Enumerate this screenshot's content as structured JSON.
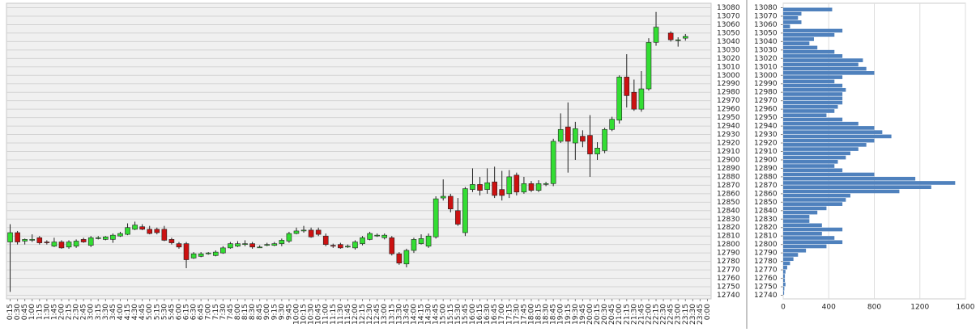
{
  "chart_data": [
    {
      "type": "candlestick",
      "x": [
        "0:15",
        "0:30",
        "0:45",
        "1:00",
        "1:15",
        "1:30",
        "1:45",
        "2:00",
        "2:15",
        "2:30",
        "2:45",
        "3:00",
        "3:15",
        "3:30",
        "3:45",
        "4:00",
        "4:15",
        "4:30",
        "4:45",
        "5:00",
        "5:15",
        "5:30",
        "5:45",
        "6:00",
        "6:15",
        "6:30",
        "6:45",
        "7:00",
        "7:15",
        "7:30",
        "7:45",
        "8:00",
        "8:15",
        "8:30",
        "8:45",
        "9:00",
        "9:15",
        "9:30",
        "9:45",
        "10:00",
        "10:15",
        "10:30",
        "10:45",
        "11:00",
        "11:15",
        "11:30",
        "11:45",
        "12:00",
        "12:15",
        "12:30",
        "12:45",
        "13:00",
        "13:15",
        "13:30",
        "13:45",
        "14:00",
        "14:15",
        "14:30",
        "14:45",
        "15:00",
        "15:15",
        "15:30",
        "15:45",
        "16:00",
        "16:15",
        "16:30",
        "16:45",
        "17:00",
        "17:15",
        "17:30",
        "17:45",
        "18:00",
        "18:15",
        "18:30",
        "18:45",
        "19:00",
        "19:15",
        "19:30",
        "19:45",
        "20:00",
        "20:15",
        "20:30",
        "20:45",
        "21:00",
        "21:15",
        "21:30",
        "21:45",
        "22:00",
        "22:15",
        "22:30",
        "22:45",
        "23:00",
        "23:15",
        "23:30",
        "23:45",
        "0:00"
      ],
      "open": [
        12803,
        12814,
        12804,
        12805,
        12808,
        12803,
        12798,
        12803,
        12797,
        12798,
        12806,
        12799,
        12807,
        12806,
        12806,
        12810,
        12812,
        12818,
        12821,
        12818,
        12818,
        12818,
        12806,
        12801,
        12801,
        12784,
        12786,
        12789,
        12787,
        12790,
        12796,
        12798,
        12800,
        12801,
        12797,
        12799,
        12799,
        12801,
        12804,
        12813,
        12816,
        12817,
        12817,
        12810,
        12799,
        12800,
        12797,
        12796,
        12801,
        12806,
        12811,
        12808,
        12808,
        12789,
        12777,
        12793,
        12801,
        12798,
        12809,
        12855,
        12857,
        12840,
        12814,
        12865,
        12871,
        12865,
        12874,
        12865,
        12860,
        12882,
        12862,
        12872,
        12864,
        12871,
        12872,
        12922,
        12939,
        12920,
        12928,
        12929,
        12907,
        12911,
        12936,
        12947,
        12998,
        12980,
        12960,
        12984,
        13039,
        null,
        13050,
        13042,
        13044,
        null,
        null,
        null
      ],
      "high": [
        12824,
        12816,
        12807,
        12812,
        12810,
        12805,
        12808,
        12805,
        12805,
        12806,
        12808,
        12810,
        12810,
        12810,
        12813,
        12815,
        12825,
        12827,
        12824,
        12822,
        12820,
        12822,
        12808,
        12803,
        12803,
        12791,
        12791,
        12791,
        12793,
        12798,
        12803,
        12804,
        12805,
        12803,
        12799,
        12802,
        12803,
        12807,
        12815,
        12820,
        12822,
        12820,
        12820,
        12813,
        12801,
        12802,
        12800,
        12805,
        12810,
        12815,
        12813,
        12813,
        12810,
        12791,
        12795,
        12808,
        12812,
        12813,
        12857,
        12877,
        12860,
        12855,
        12868,
        12890,
        12880,
        12890,
        12892,
        12887,
        12888,
        12885,
        12880,
        12875,
        12876,
        12874,
        12925,
        12955,
        12968,
        12945,
        12935,
        12953,
        12921,
        12938,
        12951,
        13000,
        13025,
        12995,
        13005,
        13044,
        13075,
        null,
        13052,
        13045,
        13049,
        null,
        null,
        null
      ],
      "low": [
        12744,
        12800,
        12800,
        12803,
        12800,
        12800,
        12797,
        12795,
        12795,
        12796,
        12802,
        12797,
        12806,
        12805,
        12802,
        12809,
        12811,
        12817,
        12817,
        12812,
        12812,
        12804,
        12800,
        12795,
        12772,
        12783,
        12785,
        12788,
        12786,
        12789,
        12795,
        12797,
        12798,
        12795,
        12796,
        12798,
        12798,
        12798,
        12802,
        12812,
        12814,
        12808,
        12810,
        12798,
        12796,
        12795,
        12796,
        12794,
        12799,
        12805,
        12809,
        12806,
        12787,
        12776,
        12773,
        12790,
        12800,
        12796,
        12807,
        12852,
        12838,
        12822,
        12810,
        12862,
        12858,
        12860,
        12855,
        12852,
        12855,
        12858,
        12860,
        12862,
        12862,
        12869,
        12869,
        12920,
        12885,
        12900,
        12915,
        12880,
        12900,
        12908,
        12934,
        12943,
        12962,
        12958,
        12957,
        12982,
        13035,
        null,
        13040,
        13034,
        13041,
        null,
        null,
        null
      ],
      "close": [
        12814,
        12803,
        12806,
        12806,
        12802,
        12802,
        12803,
        12796,
        12803,
        12804,
        12803,
        12808,
        12808,
        12809,
        12811,
        12813,
        12820,
        12823,
        12818,
        12813,
        12814,
        12805,
        12802,
        12797,
        12782,
        12789,
        12789,
        12790,
        12791,
        12796,
        12801,
        12801,
        12801,
        12797,
        12797,
        12800,
        12801,
        12805,
        12813,
        12816,
        12817,
        12809,
        12812,
        12800,
        12798,
        12796,
        12798,
        12803,
        12808,
        12813,
        12811,
        12811,
        12789,
        12778,
        12793,
        12806,
        12807,
        12810,
        12854,
        12857,
        12842,
        12824,
        12866,
        12871,
        12864,
        12873,
        12858,
        12858,
        12880,
        12862,
        12872,
        12864,
        12872,
        12872,
        12922,
        12936,
        12922,
        12937,
        12922,
        12907,
        12914,
        12936,
        12948,
        12998,
        12976,
        12960,
        12984,
        13039,
        13057,
        null,
        13042,
        13042,
        13046,
        null,
        null,
        null
      ],
      "up_color": "#33dd33",
      "down_color": "#cc1111",
      "ylim": [
        12740,
        13080
      ],
      "yticks": [
        12740,
        12750,
        12760,
        12770,
        12780,
        12790,
        12800,
        12810,
        12820,
        12830,
        12840,
        12850,
        12860,
        12870,
        12880,
        12890,
        12900,
        12910,
        12920,
        12930,
        12940,
        12950,
        12960,
        12970,
        12980,
        12990,
        13000,
        13010,
        13020,
        13030,
        13040,
        13050,
        13060,
        13070,
        13080
      ],
      "grid": true
    },
    {
      "type": "volume_profile",
      "y": [
        12740,
        12745,
        12750,
        12755,
        12760,
        12765,
        12770,
        12775,
        12780,
        12785,
        12790,
        12795,
        12800,
        12805,
        12810,
        12815,
        12820,
        12825,
        12830,
        12835,
        12840,
        12845,
        12850,
        12855,
        12860,
        12865,
        12870,
        12875,
        12880,
        12885,
        12890,
        12895,
        12900,
        12905,
        12910,
        12915,
        12920,
        12925,
        12930,
        12935,
        12940,
        12945,
        12950,
        12955,
        12960,
        12965,
        12970,
        12975,
        12980,
        12985,
        12990,
        12995,
        13000,
        13005,
        13010,
        13015,
        13020,
        13025,
        13030,
        13035,
        13040,
        13045,
        13050,
        13055,
        13060,
        13065,
        13070,
        13075
      ],
      "values": [
        8,
        10,
        20,
        15,
        15,
        20,
        35,
        60,
        90,
        130,
        200,
        380,
        520,
        450,
        340,
        520,
        340,
        230,
        230,
        300,
        380,
        520,
        550,
        590,
        1020,
        1300,
        1510,
        1160,
        800,
        520,
        450,
        480,
        550,
        590,
        660,
        730,
        800,
        950,
        870,
        800,
        660,
        520,
        380,
        450,
        480,
        520,
        520,
        520,
        550,
        520,
        450,
        520,
        800,
        730,
        660,
        700,
        520,
        450,
        300,
        230,
        270,
        450,
        520,
        60,
        160,
        130,
        160,
        430
      ],
      "color": "#4f81bd",
      "ylim": [
        12740,
        13080
      ],
      "yticks": [
        12740,
        12750,
        12760,
        12770,
        12780,
        12790,
        12800,
        12810,
        12820,
        12830,
        12840,
        12850,
        12860,
        12870,
        12880,
        12890,
        12900,
        12910,
        12920,
        12930,
        12940,
        12950,
        12960,
        12970,
        12980,
        12990,
        13000,
        13010,
        13020,
        13030,
        13040,
        13050,
        13060,
        13070,
        13080
      ],
      "xlim": [
        0,
        1600
      ],
      "xticks": [
        0,
        400,
        800,
        1200,
        1600
      ],
      "grid": true
    }
  ]
}
